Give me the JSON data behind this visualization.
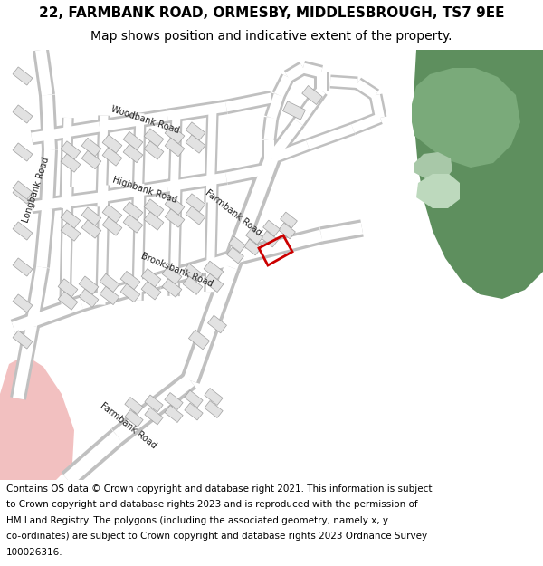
{
  "title_line1": "22, FARMBANK ROAD, ORMESBY, MIDDLESBROUGH, TS7 9EE",
  "title_line2": "Map shows position and indicative extent of the property.",
  "footer_lines": [
    "Contains OS data © Crown copyright and database right 2021. This information is subject",
    "to Crown copyright and database rights 2023 and is reproduced with the permission of",
    "HM Land Registry. The polygons (including the associated geometry, namely x, y",
    "co-ordinates) are subject to Crown copyright and database rights 2023 Ordnance Survey",
    "100026316."
  ],
  "bg_color": "#ffffff",
  "road_fill": "#ffffff",
  "road_edge": "#c0c0c0",
  "bldg_fill": "#e2e2e2",
  "bldg_edge": "#a0a0a0",
  "green_dark": "#5e8f5e",
  "green_mid": "#7aaa7a",
  "green_light": "#bdd9bd",
  "pink_fill": "#f2c0c0",
  "red_outline": "#cc0000",
  "title_fontsize": 11,
  "subtitle_fontsize": 10,
  "footer_fontsize": 7.5,
  "label_fontsize": 7
}
